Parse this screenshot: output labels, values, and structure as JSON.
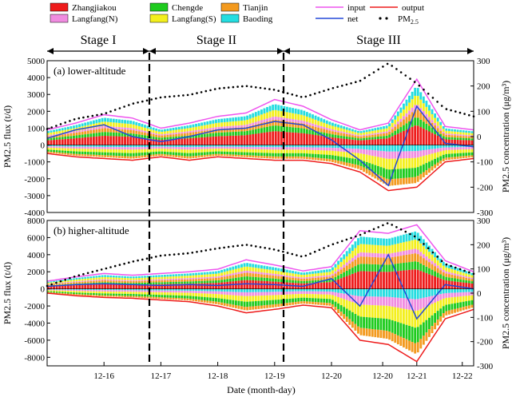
{
  "legend": {
    "sources": [
      {
        "name": "Zhangjiakou",
        "color": "#ee1c1c"
      },
      {
        "name": "Chengde",
        "color": "#1ecb1e"
      },
      {
        "name": "Tianjin",
        "color": "#f39a1f"
      },
      {
        "name": "Langfang(N)",
        "color": "#f08ce0"
      },
      {
        "name": "Langfang(S)",
        "color": "#f3ef1d"
      },
      {
        "name": "Baoding",
        "color": "#24dde0"
      }
    ],
    "lines": [
      {
        "name": "input",
        "color": "#ee55ee"
      },
      {
        "name": "output",
        "color": "#ee1c1c"
      },
      {
        "name": "net",
        "color": "#2448d8"
      },
      {
        "name": "PM",
        "sub": "2.5",
        "color": "#000000"
      }
    ]
  },
  "stages": [
    "Stage I",
    "Stage II",
    "Stage III"
  ],
  "xaxis": {
    "label": "Date (month-day)",
    "ticks": [
      "12-16",
      "12-17",
      "12-18",
      "12-19",
      "12-20",
      "12-20",
      "12-21",
      "12-22"
    ]
  },
  "chart_data": [
    {
      "type": "bar",
      "title": "(a) lower-altitude",
      "ylabel_left": "PM2.5 flux (t/d)",
      "ylabel_right": "PM2.5 concentration (μg/m³)",
      "ylim": [
        -4000,
        5000
      ],
      "ylim_right": [
        -300,
        300
      ],
      "yticks": [
        -4000,
        -3000,
        -2000,
        -1000,
        0,
        1000,
        2000,
        3000,
        4000,
        5000
      ],
      "yticks_right": [
        -300,
        -200,
        -100,
        0,
        100,
        200,
        300
      ],
      "x_days": [
        0,
        0.5,
        1,
        1.5,
        2,
        2.5,
        3,
        3.5,
        4,
        4.5,
        5,
        5.5,
        6,
        6.5,
        7,
        7.5
      ],
      "series": [
        {
          "name": "input",
          "values": [
            900,
            1300,
            1800,
            1600,
            1000,
            1300,
            1700,
            1900,
            2700,
            2300,
            1500,
            900,
            1300,
            3900,
            1100,
            900
          ]
        },
        {
          "name": "output",
          "values": [
            -500,
            -700,
            -800,
            -900,
            -700,
            -900,
            -700,
            -800,
            -900,
            -900,
            -1100,
            -1600,
            -2700,
            -2500,
            -1000,
            -800
          ]
        },
        {
          "name": "net",
          "values": [
            400,
            900,
            1200,
            500,
            200,
            500,
            900,
            1000,
            1400,
            1200,
            300,
            -900,
            -2400,
            2300,
            100,
            -100
          ]
        },
        {
          "name": "PM2.5",
          "values": [
            30,
            70,
            90,
            130,
            155,
            165,
            190,
            200,
            185,
            155,
            190,
            220,
            290,
            210,
            110,
            80
          ]
        }
      ]
    },
    {
      "type": "bar",
      "title": "(b) higher-altitude",
      "ylabel_left": "PM2.5 flux (t/d)",
      "ylabel_right": "PM2.5 concentration (μg/m³)",
      "ylim": [
        -9000,
        8000
      ],
      "ylim_right": [
        -300,
        300
      ],
      "yticks": [
        -8000,
        -6000,
        -4000,
        -2000,
        0,
        2000,
        4000,
        6000,
        8000
      ],
      "yticks_right": [
        -300,
        -200,
        -100,
        0,
        100,
        200,
        300
      ],
      "x_days": [
        0,
        0.5,
        1,
        1.5,
        2,
        2.5,
        3,
        3.5,
        4,
        4.5,
        5,
        5.5,
        6,
        6.5,
        7,
        7.5
      ],
      "series": [
        {
          "name": "input",
          "values": [
            900,
            1400,
            1800,
            1600,
            1800,
            2000,
            2300,
            3400,
            2800,
            2100,
            2600,
            6800,
            6500,
            7500,
            3300,
            2000
          ]
        },
        {
          "name": "output",
          "values": [
            -500,
            -800,
            -1000,
            -1100,
            -1300,
            -1500,
            -2000,
            -2800,
            -2400,
            -1900,
            -2200,
            -6000,
            -6500,
            -8500,
            -3500,
            -2400
          ]
        },
        {
          "name": "net",
          "values": [
            300,
            500,
            600,
            500,
            400,
            500,
            400,
            600,
            500,
            300,
            1200,
            -2000,
            4000,
            -3500,
            500,
            0
          ]
        },
        {
          "name": "PM2.5",
          "values": [
            30,
            70,
            100,
            130,
            155,
            165,
            185,
            200,
            180,
            150,
            200,
            240,
            290,
            230,
            120,
            80
          ]
        }
      ]
    }
  ]
}
